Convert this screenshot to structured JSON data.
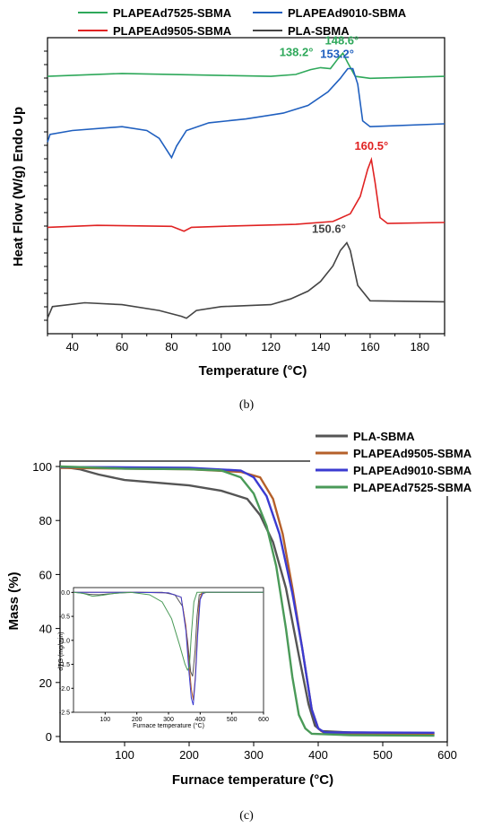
{
  "chart_data": [
    {
      "id": "b",
      "type": "line",
      "caption": "(b)",
      "xlabel": "Temperature (°C)",
      "ylabel": "Heat Flow (W/g) Endo Up",
      "xlim": [
        30,
        190
      ],
      "xticks": [
        40,
        60,
        80,
        100,
        120,
        140,
        160,
        180
      ],
      "legend_position": "top",
      "series": [
        {
          "name": "PLAPEAd7525-SBMA",
          "color": "#2ea85a",
          "points": [
            [
              30,
              0.88
            ],
            [
              60,
              0.895
            ],
            [
              100,
              0.885
            ],
            [
              120,
              0.88
            ],
            [
              130,
              0.89
            ],
            [
              136,
              0.915
            ],
            [
              140,
              0.925
            ],
            [
              144,
              0.92
            ],
            [
              147,
              0.97
            ],
            [
              149,
              1.0
            ],
            [
              151,
              0.95
            ],
            [
              154,
              0.88
            ],
            [
              160,
              0.87
            ],
            [
              190,
              0.88
            ]
          ]
        },
        {
          "name": "PLAPEAd9010-SBMA",
          "color": "#1f5fbf",
          "points": [
            [
              30,
              0.54
            ],
            [
              31,
              0.58
            ],
            [
              40,
              0.6
            ],
            [
              60,
              0.62
            ],
            [
              70,
              0.6
            ],
            [
              75,
              0.56
            ],
            [
              78,
              0.5
            ],
            [
              80,
              0.46
            ],
            [
              82,
              0.52
            ],
            [
              86,
              0.6
            ],
            [
              95,
              0.64
            ],
            [
              110,
              0.66
            ],
            [
              125,
              0.69
            ],
            [
              135,
              0.73
            ],
            [
              143,
              0.8
            ],
            [
              148,
              0.87
            ],
            [
              151,
              0.92
            ],
            [
              153,
              0.92
            ],
            [
              155,
              0.84
            ],
            [
              157,
              0.65
            ],
            [
              160,
              0.62
            ],
            [
              190,
              0.635
            ]
          ]
        },
        {
          "name": "PLAPEAd9505-SBMA",
          "color": "#e02222",
          "points": [
            [
              30,
              0.1
            ],
            [
              50,
              0.11
            ],
            [
              80,
              0.105
            ],
            [
              85,
              0.08
            ],
            [
              88,
              0.1
            ],
            [
              100,
              0.105
            ],
            [
              130,
              0.115
            ],
            [
              145,
              0.13
            ],
            [
              152,
              0.17
            ],
            [
              156,
              0.26
            ],
            [
              159,
              0.4
            ],
            [
              160.5,
              0.45
            ],
            [
              162,
              0.33
            ],
            [
              164,
              0.15
            ],
            [
              167,
              0.12
            ],
            [
              190,
              0.125
            ]
          ]
        },
        {
          "name": "PLA-SBMA",
          "color": "#444444",
          "points": [
            [
              30,
              -0.37
            ],
            [
              32,
              -0.31
            ],
            [
              45,
              -0.29
            ],
            [
              60,
              -0.3
            ],
            [
              75,
              -0.33
            ],
            [
              84,
              -0.36
            ],
            [
              86,
              -0.37
            ],
            [
              90,
              -0.33
            ],
            [
              100,
              -0.31
            ],
            [
              120,
              -0.3
            ],
            [
              128,
              -0.27
            ],
            [
              135,
              -0.23
            ],
            [
              140,
              -0.18
            ],
            [
              145,
              -0.1
            ],
            [
              148,
              -0.02
            ],
            [
              150.6,
              0.02
            ],
            [
              152,
              -0.02
            ],
            [
              155,
              -0.2
            ],
            [
              160,
              -0.28
            ],
            [
              190,
              -0.285
            ]
          ]
        }
      ],
      "annotations": [
        {
          "text": "138.2°",
          "color": "#2ea85a",
          "x": 138.2,
          "y": 0.925
        },
        {
          "text": "148.6°",
          "color": "#2ea85a",
          "x": 148.6,
          "y": 1.0
        },
        {
          "text": "153.2°",
          "color": "#1f5fbf",
          "x": 153.2,
          "y": 0.92
        },
        {
          "text": "160.5°",
          "color": "#e02222",
          "x": 160.5,
          "y": 0.45
        },
        {
          "text": "150.6°",
          "color": "#444444",
          "x": 150.6,
          "y": 0.02
        }
      ]
    },
    {
      "id": "c",
      "type": "line",
      "caption": "(c)",
      "xlabel": "Furnace temperature (°C)",
      "ylabel": "Mass (%)",
      "xlim": [
        0,
        600
      ],
      "ylim": [
        -2,
        102
      ],
      "xticks": [
        100,
        200,
        300,
        400,
        500,
        600
      ],
      "yticks": [
        0,
        20,
        40,
        60,
        80,
        100
      ],
      "legend_position": "top-right",
      "series": [
        {
          "name": "PLA-SBMA",
          "color": "#555555",
          "points": [
            [
              0,
              100
            ],
            [
              30,
              99
            ],
            [
              60,
              97
            ],
            [
              100,
              95
            ],
            [
              150,
              94
            ],
            [
              200,
              93
            ],
            [
              250,
              91
            ],
            [
              290,
              88
            ],
            [
              310,
              82
            ],
            [
              330,
              72
            ],
            [
              350,
              55
            ],
            [
              370,
              30
            ],
            [
              385,
              12
            ],
            [
              395,
              4
            ],
            [
              405,
              2
            ],
            [
              450,
              1.5
            ],
            [
              580,
              1.2
            ]
          ]
        },
        {
          "name": "PLAPEAd9505-SBMA",
          "color": "#b5602a",
          "points": [
            [
              0,
              99.5
            ],
            [
              100,
              99.2
            ],
            [
              200,
              99
            ],
            [
              280,
              98
            ],
            [
              310,
              96
            ],
            [
              330,
              88
            ],
            [
              345,
              75
            ],
            [
              360,
              55
            ],
            [
              375,
              33
            ],
            [
              390,
              10
            ],
            [
              400,
              3
            ],
            [
              410,
              1.2
            ],
            [
              450,
              1
            ],
            [
              580,
              0.8
            ]
          ]
        },
        {
          "name": "PLAPEAd9010-SBMA",
          "color": "#3b3bd1",
          "points": [
            [
              0,
              99.8
            ],
            [
              100,
              99.7
            ],
            [
              200,
              99.5
            ],
            [
              280,
              98.5
            ],
            [
              300,
              96
            ],
            [
              320,
              89
            ],
            [
              340,
              75
            ],
            [
              360,
              53
            ],
            [
              375,
              33
            ],
            [
              390,
              10
            ],
            [
              400,
              3
            ],
            [
              410,
              1.5
            ],
            [
              450,
              1.5
            ],
            [
              580,
              1.4
            ]
          ]
        },
        {
          "name": "PLAPEAd7525-SBMA",
          "color": "#4a9a58",
          "points": [
            [
              0,
              100
            ],
            [
              100,
              99.2
            ],
            [
              200,
              99
            ],
            [
              250,
              98.5
            ],
            [
              280,
              96
            ],
            [
              300,
              90
            ],
            [
              320,
              78
            ],
            [
              335,
              63
            ],
            [
              350,
              40
            ],
            [
              360,
              22
            ],
            [
              370,
              8
            ],
            [
              380,
              3
            ],
            [
              390,
              1
            ],
            [
              450,
              0.5
            ],
            [
              580,
              0.3
            ]
          ]
        }
      ],
      "inset": {
        "type": "line",
        "xlabel": "Furnace temperature (°C)",
        "ylabel": "dTG (mg/min)",
        "xlim": [
          0,
          600
        ],
        "ylim": [
          -2.5,
          0.1
        ],
        "xticks": [
          100,
          200,
          300,
          400,
          500,
          600
        ],
        "yticks": [
          0.0,
          -0.5,
          -1.0,
          -1.5,
          -2.0,
          -2.5
        ],
        "series": [
          {
            "name": "PLA-SBMA",
            "color": "#555555",
            "points": [
              [
                0,
                0
              ],
              [
                20,
                -0.01
              ],
              [
                50,
                -0.04
              ],
              [
                80,
                -0.05
              ],
              [
                110,
                -0.03
              ],
              [
                150,
                -0.01
              ],
              [
                200,
                0
              ],
              [
                280,
                0
              ],
              [
                320,
                -0.05
              ],
              [
                345,
                -0.3
              ],
              [
                360,
                -1.0
              ],
              [
                370,
                -1.65
              ],
              [
                376,
                -1.75
              ],
              [
                384,
                -1.2
              ],
              [
                390,
                -0.5
              ],
              [
                397,
                -0.05
              ],
              [
                420,
                0
              ],
              [
                600,
                0
              ]
            ]
          },
          {
            "name": "PLAPEAd9505-SBMA",
            "color": "#b5602a",
            "points": [
              [
                0,
                0
              ],
              [
                100,
                0
              ],
              [
                200,
                0
              ],
              [
                300,
                -0.01
              ],
              [
                340,
                -0.1
              ],
              [
                355,
                -0.7
              ],
              [
                365,
                -1.5
              ],
              [
                372,
                -2.0
              ],
              [
                378,
                -2.25
              ],
              [
                384,
                -1.8
              ],
              [
                390,
                -1.0
              ],
              [
                397,
                -0.2
              ],
              [
                405,
                0
              ],
              [
                600,
                0
              ]
            ]
          },
          {
            "name": "PLAPEAd9010-SBMA",
            "color": "#3b3bd1",
            "points": [
              [
                0,
                0
              ],
              [
                100,
                0
              ],
              [
                200,
                0
              ],
              [
                300,
                -0.01
              ],
              [
                340,
                -0.1
              ],
              [
                355,
                -0.8
              ],
              [
                365,
                -1.7
              ],
              [
                372,
                -2.2
              ],
              [
                378,
                -2.35
              ],
              [
                385,
                -1.8
              ],
              [
                392,
                -0.9
              ],
              [
                400,
                -0.15
              ],
              [
                410,
                0
              ],
              [
                600,
                0
              ]
            ]
          },
          {
            "name": "PLAPEAd7525-SBMA",
            "color": "#4a9a58",
            "points": [
              [
                0,
                0
              ],
              [
                30,
                -0.02
              ],
              [
                60,
                -0.08
              ],
              [
                90,
                -0.06
              ],
              [
                130,
                -0.02
              ],
              [
                180,
                0
              ],
              [
                240,
                -0.05
              ],
              [
                280,
                -0.2
              ],
              [
                310,
                -0.55
              ],
              [
                335,
                -1.1
              ],
              [
                352,
                -1.5
              ],
              [
                360,
                -1.62
              ],
              [
                366,
                -1.55
              ],
              [
                372,
                -0.9
              ],
              [
                380,
                -0.2
              ],
              [
                390,
                0
              ],
              [
                600,
                0
              ]
            ]
          }
        ]
      }
    }
  ]
}
